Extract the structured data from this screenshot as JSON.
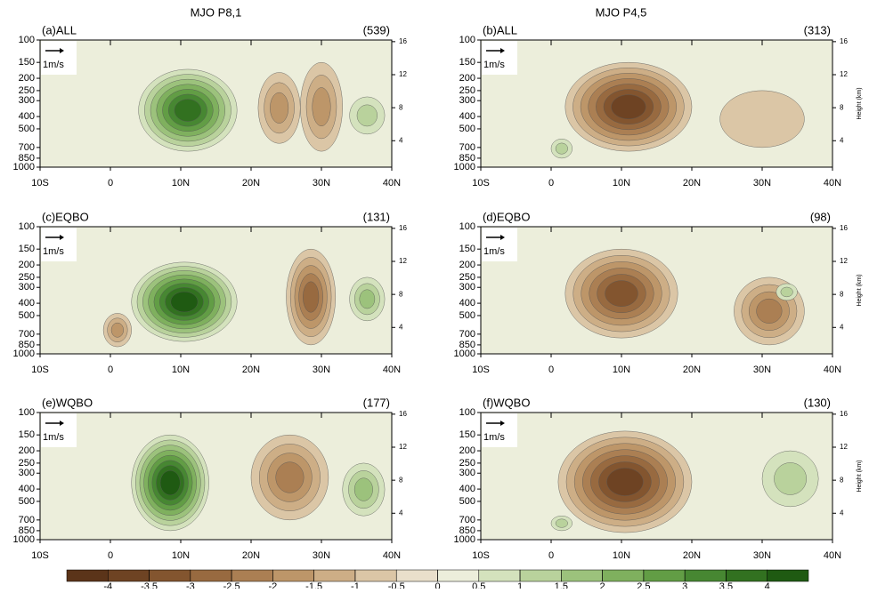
{
  "axes": {
    "ylim": [
      1000,
      100
    ],
    "log_y": true,
    "yticks": [
      100,
      150,
      200,
      250,
      300,
      400,
      500,
      700,
      850,
      1000
    ],
    "xlim": [
      -10,
      40
    ],
    "xticks": [
      {
        "value": -10,
        "label": "10S"
      },
      0,
      {
        "value": 10,
        "label": "10N"
      },
      {
        "value": 20,
        "label": "20N"
      },
      {
        "value": 30,
        "label": "30N"
      },
      {
        "value": 40,
        "label": "40N"
      }
    ],
    "y2lim": [
      0.8,
      16.2
    ],
    "y2ticks": [
      4,
      8,
      12,
      16
    ],
    "y2label": "Height (km)",
    "reference_arrow": "1m/s"
  },
  "colorbar": {
    "ticks": [
      -4,
      -3.5,
      -3,
      -2.5,
      -2,
      -1.5,
      -1,
      -0.5,
      0,
      0.5,
      1,
      1.5,
      2,
      2.5,
      3,
      3.5,
      4
    ],
    "colors": [
      "#5b3419",
      "#6e4323",
      "#83552f",
      "#986a40",
      "#ab7f53",
      "#bd9669",
      "#cdae86",
      "#dbc6a6",
      "#e9dfcb",
      "#eceedb",
      "#d4e2bd",
      "#b9d29c",
      "#9cc27c",
      "#7fb05e",
      "#629d45",
      "#478732",
      "#327120",
      "#1f5a12"
    ]
  },
  "chart_data": [
    {
      "type": "contour",
      "header": "MJO P8,1",
      "title": "(a)ALL",
      "count": "(539)",
      "anomalies": [
        {
          "lat": [
            4,
            18
          ],
          "p": [
            170,
            750
          ],
          "value": 3.5
        },
        {
          "lat": [
            21,
            27
          ],
          "p": [
            180,
            650
          ],
          "value": -1.5
        },
        {
          "lat": [
            27,
            33
          ],
          "p": [
            150,
            750
          ],
          "value": -1.5
        },
        {
          "lat": [
            34,
            39
          ],
          "p": [
            280,
            550
          ],
          "value": 1
        }
      ]
    },
    {
      "type": "contour",
      "header": "MJO P4,5",
      "title": "(b)ALL",
      "count": "(313)",
      "anomalies": [
        {
          "lat": [
            2,
            20
          ],
          "p": [
            150,
            750
          ],
          "value": -3.5
        },
        {
          "lat": [
            0,
            3
          ],
          "p": [
            600,
            850
          ],
          "value": 1
        },
        {
          "lat": [
            24,
            36
          ],
          "p": [
            250,
            700
          ],
          "value": -0.5
        }
      ]
    },
    {
      "type": "contour",
      "title": "(c)EQBO",
      "count": "(131)",
      "anomalies": [
        {
          "lat": [
            3,
            18
          ],
          "p": [
            190,
            800
          ],
          "value": 4
        },
        {
          "lat": [
            25,
            32
          ],
          "p": [
            150,
            850
          ],
          "value": -2.5
        },
        {
          "lat": [
            34,
            39
          ],
          "p": [
            250,
            550
          ],
          "value": 1.5
        },
        {
          "lat": [
            -1,
            3
          ],
          "p": [
            480,
            880
          ],
          "value": -1.5
        }
      ]
    },
    {
      "type": "contour",
      "title": "(d)EQBO",
      "count": "(98)",
      "anomalies": [
        {
          "lat": [
            2,
            18
          ],
          "p": [
            150,
            750
          ],
          "value": -3
        },
        {
          "lat": [
            26,
            36
          ],
          "p": [
            250,
            850
          ],
          "value": -2
        },
        {
          "lat": [
            32,
            35
          ],
          "p": [
            280,
            380
          ],
          "value": 1
        }
      ]
    },
    {
      "type": "contour",
      "title": "(e)WQBO",
      "count": "(177)",
      "anomalies": [
        {
          "lat": [
            3,
            14
          ],
          "p": [
            150,
            850
          ],
          "value": 4
        },
        {
          "lat": [
            20,
            31
          ],
          "p": [
            150,
            700
          ],
          "value": -2
        },
        {
          "lat": [
            33,
            39
          ],
          "p": [
            250,
            650
          ],
          "value": 1.5
        }
      ]
    },
    {
      "type": "contour",
      "title": "(f)WQBO",
      "count": "(130)",
      "anomalies": [
        {
          "lat": [
            1,
            20
          ],
          "p": [
            140,
            880
          ],
          "value": -3.5
        },
        {
          "lat": [
            0,
            3
          ],
          "p": [
            650,
            850
          ],
          "value": 1
        },
        {
          "lat": [
            30,
            38
          ],
          "p": [
            200,
            550
          ],
          "value": 1
        }
      ]
    }
  ]
}
